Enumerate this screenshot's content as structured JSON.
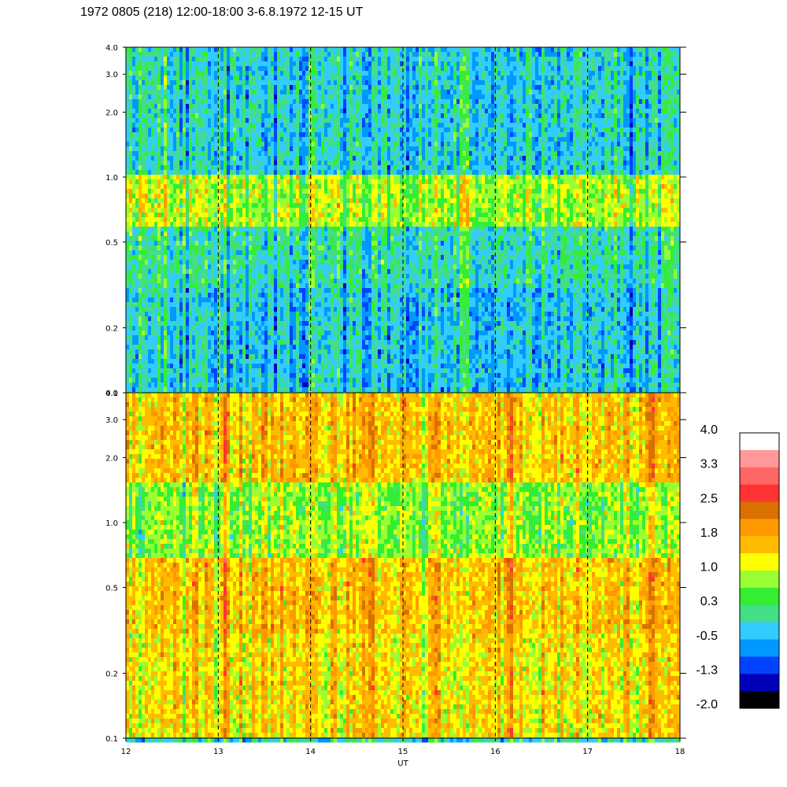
{
  "title": "1972 0805 (218) 12:00-18:00 3-6.8.1972  12-15 UT",
  "chart_data": [
    {
      "type": "heatmap",
      "panel": "top",
      "x_range": [
        12,
        18
      ],
      "y_range": [
        0.1,
        4.0
      ],
      "y_scale": "log",
      "y_ticks": [
        {
          "v": 0.1,
          "label": "0.1"
        },
        {
          "v": 0.2,
          "label": "0.2"
        },
        {
          "v": 0.5,
          "label": "0.5"
        },
        {
          "v": 1.0,
          "label": "1.0"
        },
        {
          "v": 2.0,
          "label": "2.0"
        },
        {
          "v": 3.0,
          "label": "3.0"
        },
        {
          "v": 4.0,
          "label": "4.0"
        }
      ],
      "hour_markers": [
        13,
        14,
        15,
        16,
        17
      ],
      "approx_level_by_freq": [
        {
          "range": [
            0.1,
            0.3
          ],
          "level": -0.3
        },
        {
          "range": [
            0.3,
            0.6
          ],
          "level": 0.0
        },
        {
          "range": [
            0.6,
            1.0
          ],
          "level": 0.9
        },
        {
          "range": [
            1.0,
            4.0
          ],
          "level": -0.2
        }
      ]
    },
    {
      "type": "heatmap",
      "panel": "bottom",
      "x_range": [
        12,
        18
      ],
      "y_range": [
        0.1,
        4.0
      ],
      "y_scale": "log",
      "y_ticks": [
        {
          "v": 0.1,
          "label": "0.1"
        },
        {
          "v": 0.2,
          "label": "0.2"
        },
        {
          "v": 0.5,
          "label": "0.5"
        },
        {
          "v": 1.0,
          "label": "1.0"
        },
        {
          "v": 2.0,
          "label": "2.0"
        },
        {
          "v": 3.0,
          "label": "3.0"
        },
        {
          "v": 4.0,
          "label": "4.0"
        }
      ],
      "x_ticks": [
        {
          "v": 12,
          "label": "12"
        },
        {
          "v": 13,
          "label": "13"
        },
        {
          "v": 14,
          "label": "14"
        },
        {
          "v": 15,
          "label": "15"
        },
        {
          "v": 16,
          "label": "16"
        },
        {
          "v": 17,
          "label": "17"
        },
        {
          "v": 18,
          "label": "18"
        }
      ],
      "xlabel": "UT",
      "hour_markers": [
        13,
        14,
        15,
        16,
        17
      ],
      "approx_level_by_freq": [
        {
          "range": [
            0.1,
            0.3
          ],
          "level": 1.4
        },
        {
          "range": [
            0.3,
            0.7
          ],
          "level": 1.6
        },
        {
          "range": [
            0.7,
            1.5
          ],
          "level": 0.8
        },
        {
          "range": [
            1.5,
            4.0
          ],
          "level": 1.6
        }
      ]
    }
  ],
  "colorbar": {
    "colors": [
      "#ffffff",
      "#ff9999",
      "#ff6666",
      "#ff3333",
      "#d97000",
      "#ff9900",
      "#ffbb00",
      "#ffff00",
      "#99ff33",
      "#33ee33",
      "#44dd88",
      "#33ccff",
      "#0099ff",
      "#0044ff",
      "#0000bb",
      "#000000"
    ],
    "labels": [
      "4.0",
      "3.3",
      "2.5",
      "1.8",
      "1.0",
      "0.3",
      "-0.5",
      "-1.3",
      "-2.0"
    ]
  }
}
